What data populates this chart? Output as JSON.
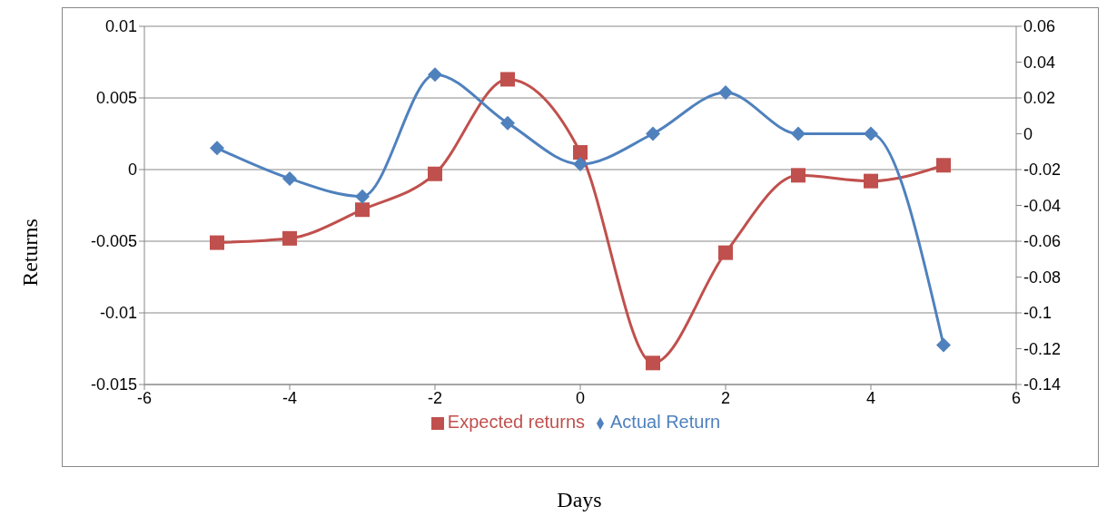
{
  "chart_data": {
    "type": "line",
    "xlabel": "Days",
    "ylabel": "Returns",
    "x": [
      -5,
      -4,
      -3,
      -2,
      -1,
      0,
      1,
      2,
      3,
      4,
      5
    ],
    "xlim": [
      -6,
      6
    ],
    "xticks": [
      -6,
      -4,
      -2,
      0,
      2,
      4,
      6
    ],
    "ylim": [
      -0.015,
      0.01
    ],
    "yticks": [
      -0.015,
      -0.01,
      -0.005,
      0,
      0.005,
      0.01
    ],
    "y2lim": [
      -0.14,
      0.06
    ],
    "y2ticks": [
      -0.14,
      -0.12,
      -0.1,
      -0.08,
      -0.06,
      -0.04,
      -0.02,
      0,
      0.02,
      0.04,
      0.06
    ],
    "grid": "y",
    "legend": "bottom",
    "series": [
      {
        "name": "Expected returns",
        "color": "#c0504d",
        "marker": "square",
        "values": [
          -0.0051,
          -0.0048,
          -0.0028,
          -0.0003,
          0.0063,
          0.0012,
          -0.0135,
          -0.0058,
          -0.0004,
          -0.0008,
          0.0003
        ]
      },
      {
        "name": "Actual Return",
        "color": "#4f81bd",
        "marker": "diamond",
        "axis": "y2",
        "values": [
          -0.008,
          -0.025,
          -0.035,
          0.033,
          0.006,
          -0.017,
          0,
          0.023,
          0,
          0,
          -0.118
        ]
      }
    ]
  }
}
